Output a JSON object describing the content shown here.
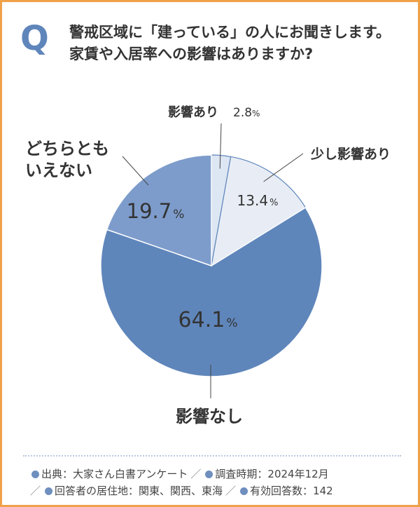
{
  "question": {
    "mark": "Q",
    "line1": "警戒区域に「建っている」の人にお聞きします。",
    "line2": "家賃や入居率への影響はありますか?"
  },
  "chart_data": {
    "type": "pie",
    "slices": [
      {
        "label": "影響あり",
        "value": 2.8,
        "value_text": "2.8",
        "color": "#dde6f3"
      },
      {
        "label": "少し影響あり",
        "value": 13.4,
        "value_text": "13.4",
        "color": "#e8edf5"
      },
      {
        "label": "影響なし",
        "value": 64.1,
        "value_text": "64.1",
        "color": "#5f86bb"
      },
      {
        "label": "どちらとも\nいえない",
        "value": 19.7,
        "value_text": "19.7",
        "color": "#7d9ccb"
      }
    ],
    "unit": "%",
    "start": "top",
    "direction": "clockwise"
  },
  "footer": {
    "source": "出典：大家さん白書アンケート",
    "period": "調査時期：2024年12月",
    "area": "回答者の居住地：関東、関西、東海",
    "count": "有効回答数：142",
    "separator": "／",
    "dot_color": "#6f8fbe"
  }
}
